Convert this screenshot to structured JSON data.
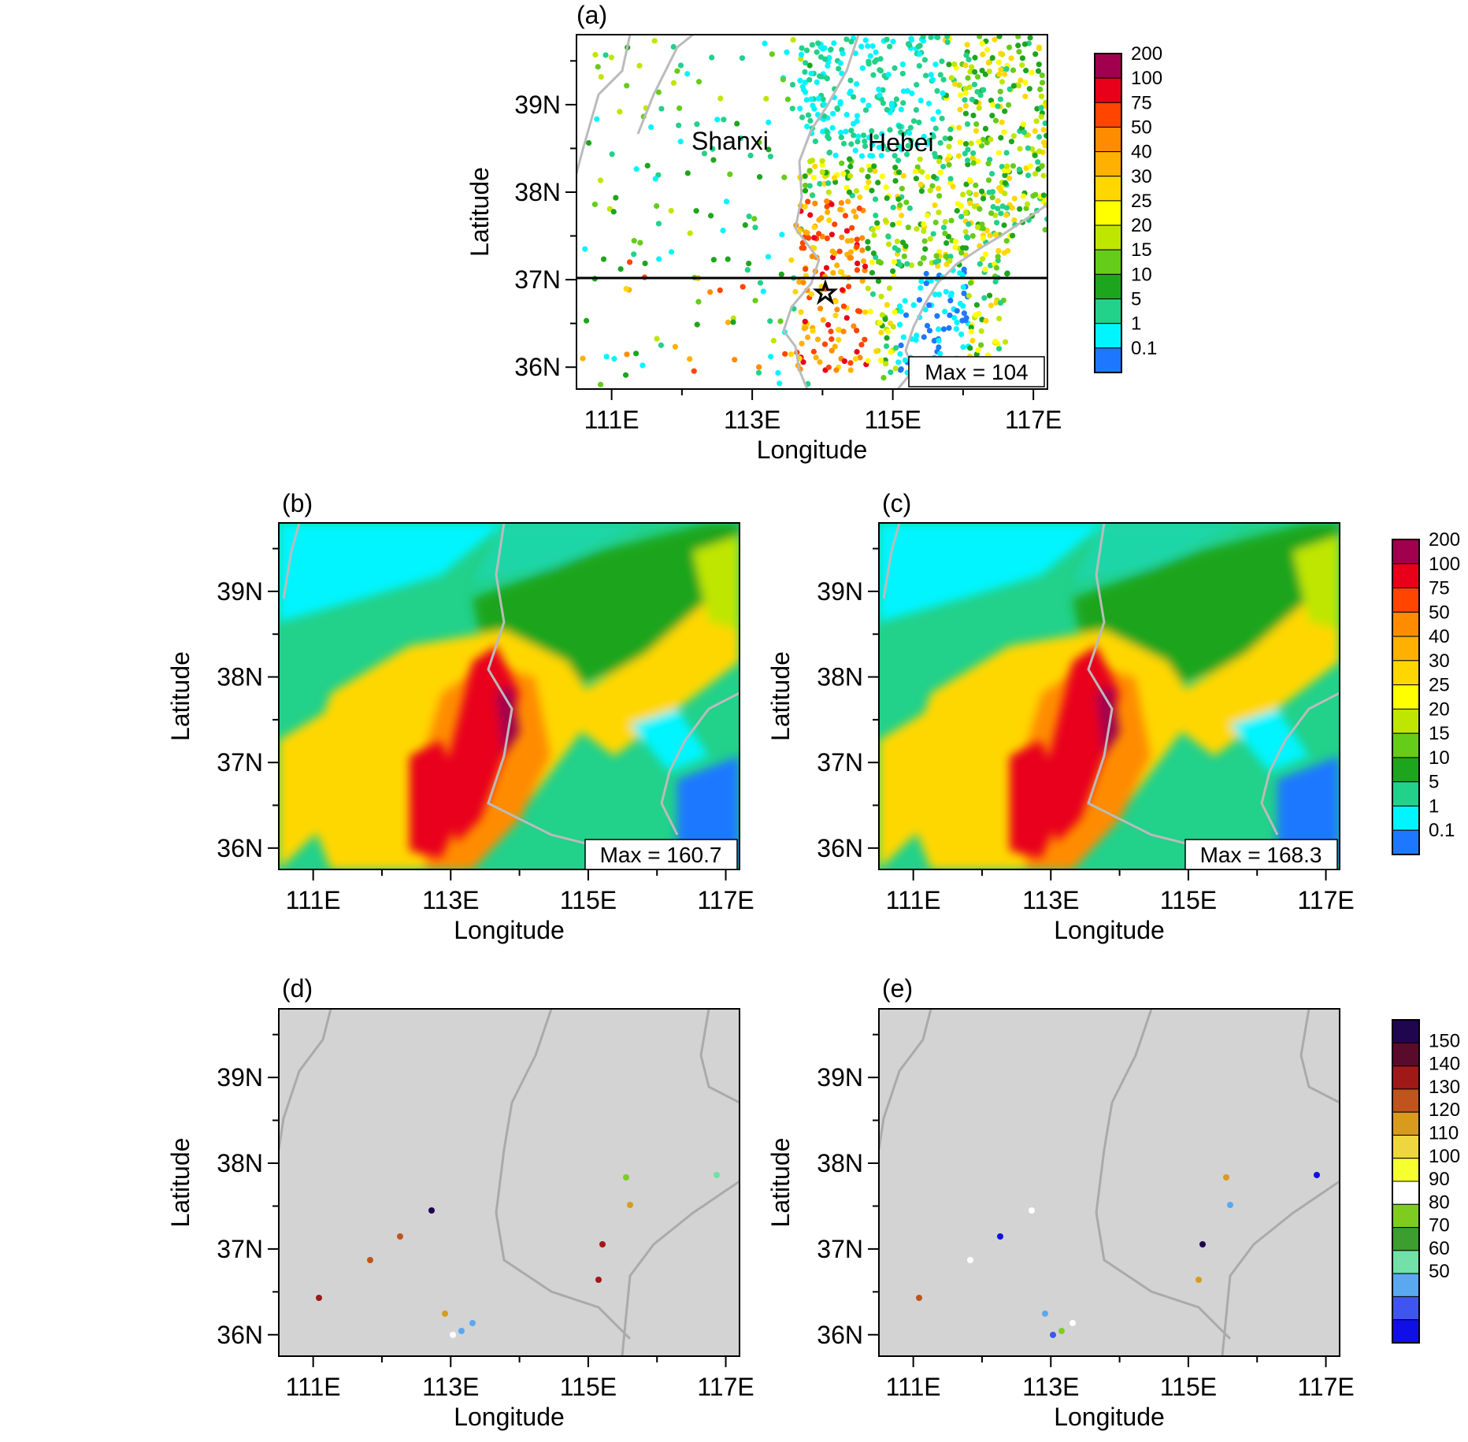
{
  "panels": {
    "a": {
      "label": "(a)",
      "max_text": "Max = 104",
      "region_shanxi": "Shanxi",
      "region_hebei": "Hebei"
    },
    "b": {
      "label": "(b)",
      "max_text": "Max = 160.7"
    },
    "c": {
      "label": "(c)",
      "max_text": "Max = 168.3"
    },
    "d": {
      "label": "(d)"
    },
    "e": {
      "label": "(e)"
    }
  },
  "axes": {
    "xlabel": "Longitude",
    "ylabel": "Latitude",
    "x_ticks": [
      "111E",
      "113E",
      "115E",
      "117E"
    ],
    "y_ticks": [
      "36N",
      "37N",
      "38N",
      "39N"
    ]
  },
  "colorbars": {
    "precip": {
      "labels": [
        "200",
        "100",
        "75",
        "50",
        "40",
        "30",
        "25",
        "20",
        "15",
        "10",
        "5",
        "1",
        "0.1"
      ],
      "colors": [
        "#a0004d",
        "#e8001a",
        "#ff4500",
        "#ff8c00",
        "#ffb000",
        "#ffd700",
        "#ffff00",
        "#bfe600",
        "#66cc1a",
        "#1ea51e",
        "#22d18a",
        "#00f5ff",
        "#1e78ff"
      ]
    },
    "percent": {
      "labels": [
        "150",
        "140",
        "130",
        "120",
        "110",
        "100",
        "90",
        "80",
        "70",
        "60",
        "50"
      ],
      "colors": [
        "#20064e",
        "#5a0a2a",
        "#a01818",
        "#c0541c",
        "#d89b1e",
        "#eed640",
        "#f6ff30",
        "#ffffff",
        "#7fcc20",
        "#3b9e2e",
        "#72e0a8",
        "#59a8f0",
        "#3f55f0",
        "#1010e6"
      ]
    }
  },
  "chart_data": {
    "type": "map",
    "lon_range": [
      110.5,
      117.2
    ],
    "lat_range": [
      35.75,
      39.8
    ],
    "cross_section_lat": 37.0,
    "star_location": [
      114.0,
      36.85
    ],
    "panel_max": {
      "a": 104,
      "b": 160.7,
      "c": 168.3
    }
  }
}
